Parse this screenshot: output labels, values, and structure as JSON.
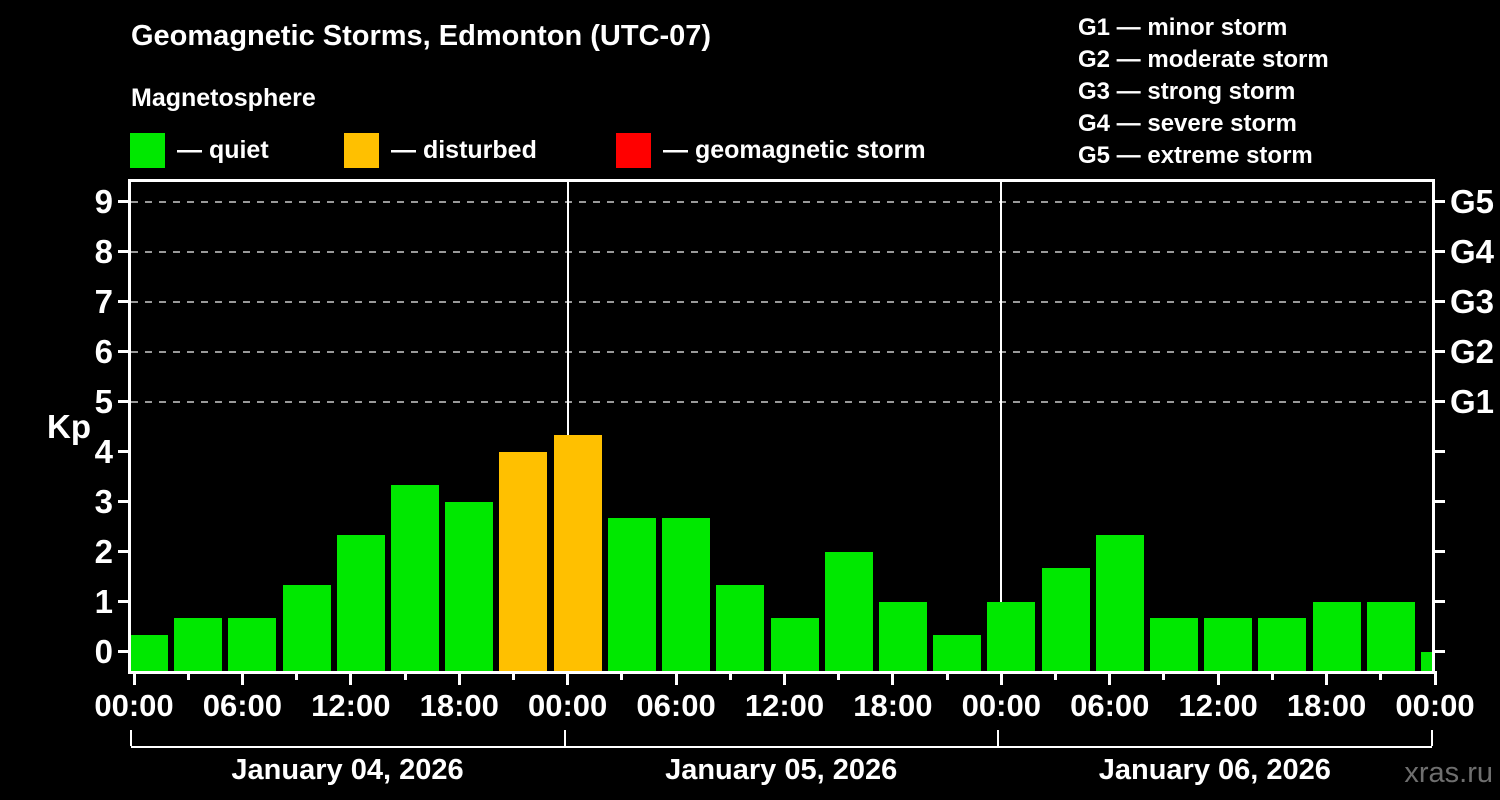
{
  "header": {
    "title": "Geomagnetic Storms, Edmonton (UTC-07)",
    "subtitle": "Magnetosphere"
  },
  "legend": {
    "items": [
      {
        "key": "quiet",
        "label": "— quiet",
        "color": "#00e800"
      },
      {
        "key": "disturbed",
        "label": "— disturbed",
        "color": "#ffc000"
      },
      {
        "key": "storm",
        "label": "— geomagnetic storm",
        "color": "#ff0000"
      }
    ]
  },
  "g_legend": {
    "items": [
      "G1 — minor storm",
      "G2 — moderate storm",
      "G3 — strong storm",
      "G4 — severe storm",
      "G5 — extreme storm"
    ]
  },
  "watermark": "xras.ru",
  "chart_data": {
    "type": "bar",
    "title": "Geomagnetic Storms, Edmonton (UTC-07)",
    "subtitle": "Magnetosphere",
    "ylabel": "Kp",
    "ylim": [
      -0.39,
      9.4
    ],
    "y_ticks": [
      0,
      1,
      2,
      3,
      4,
      5,
      6,
      7,
      8,
      9
    ],
    "gridlines_at_kp": [
      5,
      6,
      7,
      8,
      9
    ],
    "grid": "dashed horizontal at Kp 5-9 only",
    "right_axis_labels": [
      {
        "kp": 5,
        "label": "G1"
      },
      {
        "kp": 6,
        "label": "G2"
      },
      {
        "kp": 7,
        "label": "G3"
      },
      {
        "kp": 8,
        "label": "G4"
      },
      {
        "kp": 9,
        "label": "G5"
      }
    ],
    "bar_interval_hours": 3,
    "x_tick_interval_hours": 6,
    "x_minor_tick_interval_hours": 3,
    "x_tick_labels": [
      "00:00",
      "06:00",
      "12:00",
      "18:00",
      "00:00",
      "06:00",
      "12:00",
      "18:00",
      "00:00",
      "06:00",
      "12:00",
      "18:00",
      "00:00"
    ],
    "day_labels": [
      "January 04, 2026",
      "January 05, 2026",
      "January 06, 2026"
    ],
    "series": [
      {
        "day": "January 04, 2026",
        "values": [
          0.33,
          0.67,
          0.67,
          1.33,
          2.33,
          3.33,
          3.0,
          4.0
        ],
        "status": [
          "quiet",
          "quiet",
          "quiet",
          "quiet",
          "quiet",
          "quiet",
          "quiet",
          "disturbed"
        ]
      },
      {
        "day": "January 05, 2026",
        "values": [
          4.33,
          2.67,
          2.67,
          1.33,
          0.67,
          2.0,
          1.0,
          0.33
        ],
        "status": [
          "disturbed",
          "quiet",
          "quiet",
          "quiet",
          "quiet",
          "quiet",
          "quiet",
          "quiet"
        ]
      },
      {
        "day": "January 06, 2026",
        "values": [
          1.0,
          1.67,
          2.33,
          0.67,
          0.67,
          0.67,
          1.0,
          1.0
        ],
        "status": [
          "quiet",
          "quiet",
          "quiet",
          "quiet",
          "quiet",
          "quiet",
          "quiet",
          "quiet"
        ]
      }
    ],
    "trailing_partial_bar": {
      "value": 0.0,
      "status": "quiet"
    },
    "legend_position": "top",
    "background_color": "#000000",
    "axis_color": "#ffffff"
  }
}
